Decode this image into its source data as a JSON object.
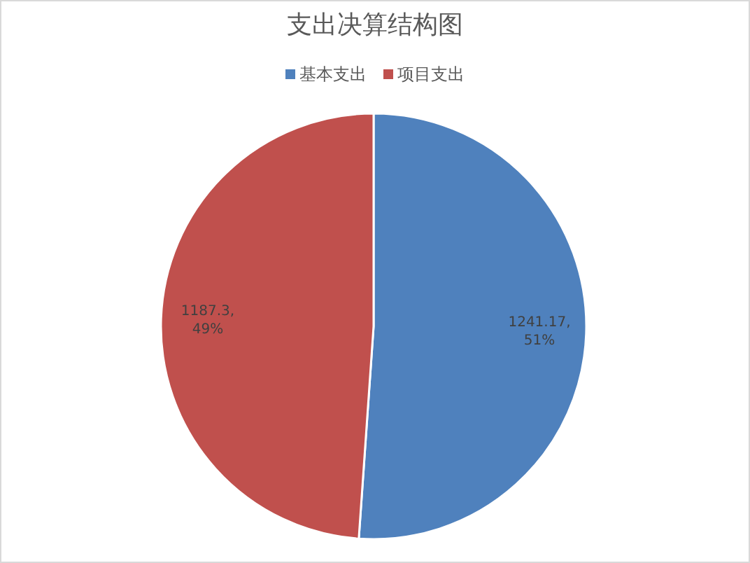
{
  "chart_data": {
    "type": "pie",
    "title": "支出决算结构图",
    "categories": [
      "基本支出",
      "项目支出"
    ],
    "values": [
      1241.17,
      1187.3
    ],
    "colors": [
      "#4f81bd",
      "#c0504d"
    ],
    "value_labels": [
      "1241.17, 51%",
      "1187.3, 49%"
    ],
    "legend": "top"
  }
}
